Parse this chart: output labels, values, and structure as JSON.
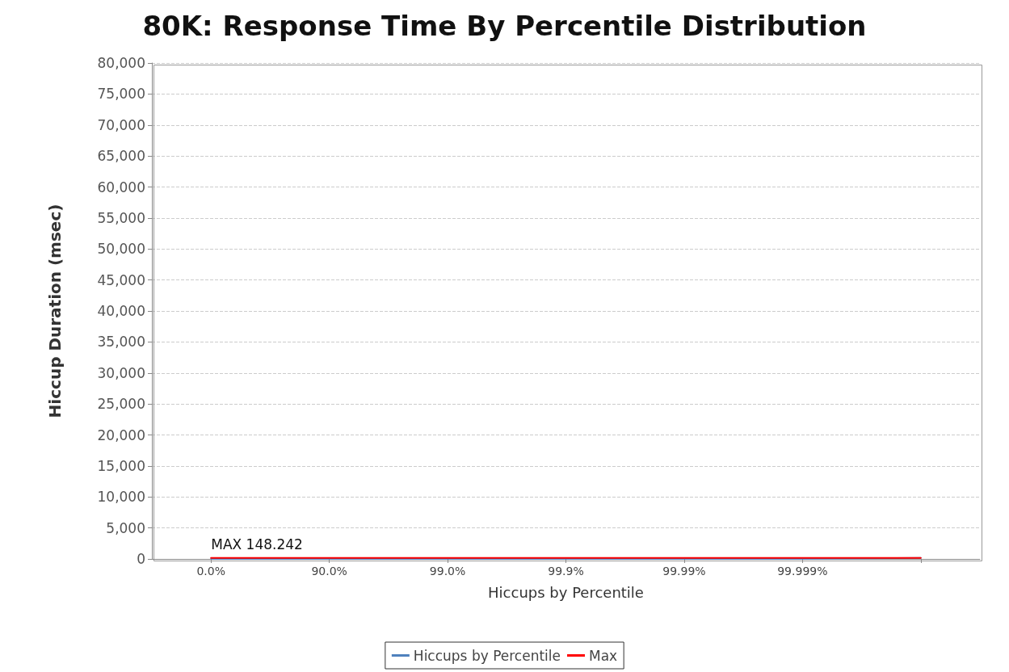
{
  "chart_data": {
    "type": "line",
    "title": "80K: Response Time By Percentile Distribution",
    "xlabel": "Hiccups by Percentile",
    "ylabel": "Hiccup Duration (msec)",
    "categories": [
      "0.0%",
      "90.0%",
      "99.0%",
      "99.9%",
      "99.99%",
      "99.999%",
      null
    ],
    "series": [
      {
        "name": "Hiccups by Percentile",
        "color": "#4f81bd",
        "values": [
          0,
          0,
          0,
          0,
          0,
          0,
          148.242
        ]
      },
      {
        "name": "Max",
        "color": "#ff0000",
        "values": [
          148.242,
          148.242,
          148.242,
          148.242,
          148.242,
          148.242,
          148.242
        ]
      }
    ],
    "ylim": [
      0,
      80000
    ],
    "yticks": [
      {
        "value": 0,
        "label": "0"
      },
      {
        "value": 5000,
        "label": "5,000"
      },
      {
        "value": 10000,
        "label": "10,000"
      },
      {
        "value": 15000,
        "label": "15,000"
      },
      {
        "value": 20000,
        "label": "20,000"
      },
      {
        "value": 25000,
        "label": "25,000"
      },
      {
        "value": 30000,
        "label": "30,000"
      },
      {
        "value": 35000,
        "label": "35,000"
      },
      {
        "value": 40000,
        "label": "40,000"
      },
      {
        "value": 45000,
        "label": "45,000"
      },
      {
        "value": 50000,
        "label": "50,000"
      },
      {
        "value": 55000,
        "label": "55,000"
      },
      {
        "value": 60000,
        "label": "60,000"
      },
      {
        "value": 65000,
        "label": "65,000"
      },
      {
        "value": 70000,
        "label": "70,000"
      },
      {
        "value": 75000,
        "label": "75,000"
      },
      {
        "value": 80000,
        "label": "80,000"
      }
    ],
    "annotations": [
      {
        "text": "MAX 148.242",
        "x": "0.0%",
        "y": 148.242
      }
    ],
    "grid": "y",
    "legend": "bottom",
    "marker": "none",
    "line_style": "solid"
  }
}
